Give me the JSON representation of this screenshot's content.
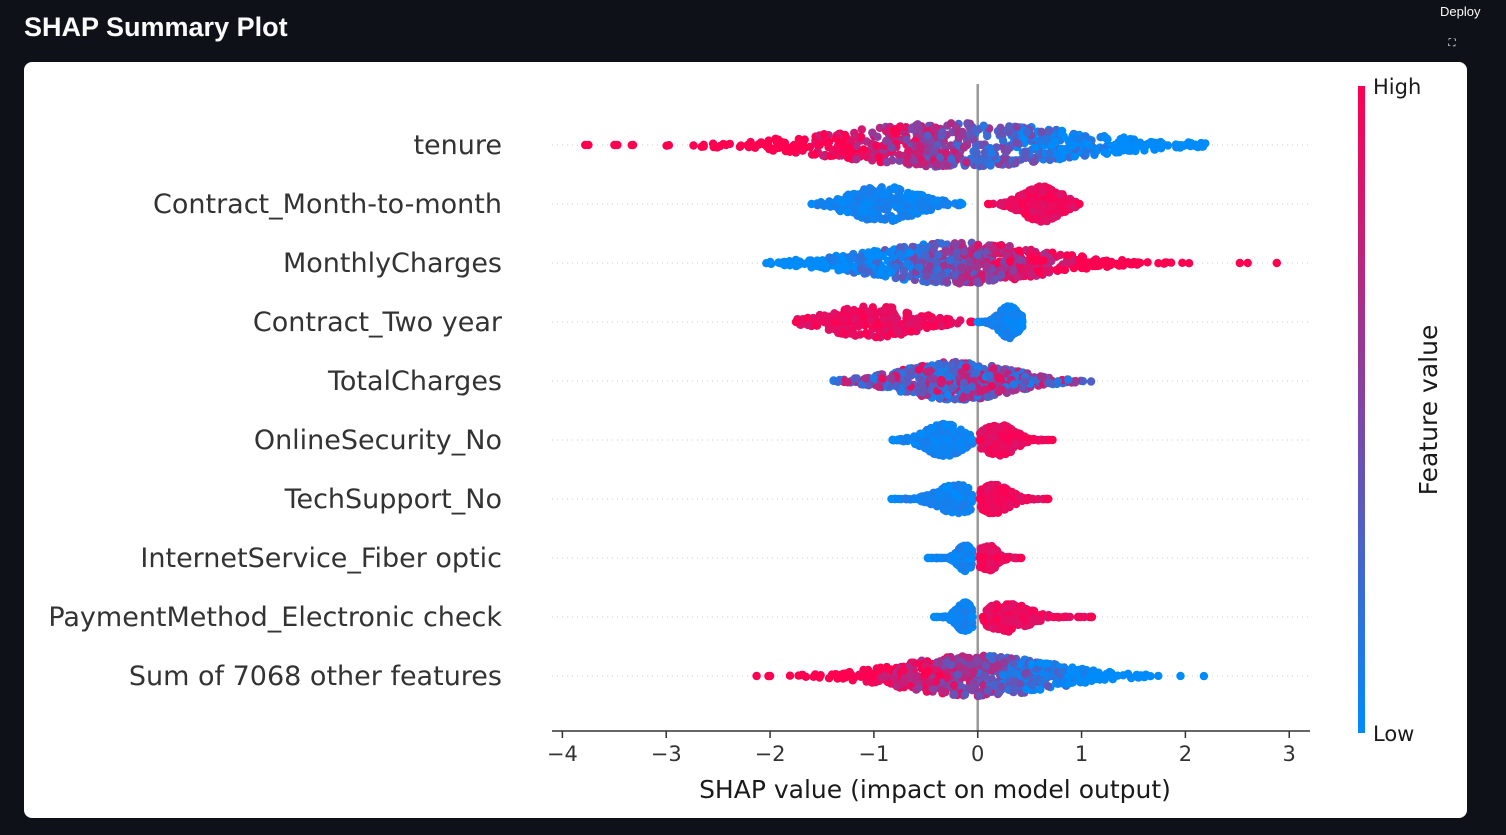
{
  "header": {
    "title": "SHAP Summary Plot",
    "deploy_label": "Deploy",
    "fullscreen_icon": "⛶"
  },
  "chart_data": {
    "type": "scatter",
    "subtype": "shap-beeswarm",
    "xlabel": "SHAP value (impact on model output)",
    "xlim": [
      -4.1,
      3.2
    ],
    "xticks": [
      -4,
      -3,
      -2,
      -1,
      0,
      1,
      2,
      3
    ],
    "xtick_labels": [
      "−4",
      "−3",
      "−2",
      "−1",
      "0",
      "1",
      "2",
      "3"
    ],
    "colorbar": {
      "title": "Feature value",
      "high_label": "High",
      "low_label": "Low",
      "high_color": "#ff0051",
      "low_color": "#008bfb"
    },
    "features": [
      {
        "name": "tenure",
        "mode": "mixed",
        "min": -3.8,
        "max": 2.2,
        "center": -0.2,
        "spread": 1.1,
        "height": 0.75,
        "n": 700,
        "outliers": [
          -3.78,
          -3.47,
          -3.32
        ],
        "color_trend": -1
      },
      {
        "name": "Contract_Month-to-month",
        "mode": "split",
        "neg": {
          "min": -1.6,
          "max": -0.15,
          "center": -0.9,
          "spread": 0.32,
          "high": false
        },
        "pos": {
          "min": 0.1,
          "max": 0.98,
          "center": 0.62,
          "spread": 0.18,
          "high": true
        },
        "height": 0.6,
        "n": 520
      },
      {
        "name": "MonthlyCharges",
        "mode": "mixed",
        "min": -2.05,
        "max": 2.9,
        "center": -0.2,
        "spread": 0.8,
        "height": 0.7,
        "n": 700,
        "outliers": [
          2.6,
          2.88
        ],
        "color_trend": 1
      },
      {
        "name": "Contract_Two year",
        "mode": "split",
        "neg": {
          "min": -1.75,
          "max": -0.05,
          "center": -1.0,
          "spread": 0.4,
          "high": true
        },
        "pos": {
          "min": 0.0,
          "max": 0.43,
          "center": 0.3,
          "spread": 0.09,
          "high": false
        },
        "height": 0.55,
        "n": 480
      },
      {
        "name": "TotalCharges",
        "mode": "mixed",
        "min": -1.4,
        "max": 1.55,
        "center": -0.2,
        "spread": 0.5,
        "height": 0.65,
        "n": 560,
        "color_trend": 0
      },
      {
        "name": "OnlineSecurity_No",
        "mode": "split",
        "neg": {
          "min": -0.82,
          "max": -0.05,
          "center": -0.32,
          "spread": 0.18,
          "high": false
        },
        "pos": {
          "min": 0.02,
          "max": 0.72,
          "center": 0.2,
          "spread": 0.15,
          "high": true
        },
        "height": 0.55,
        "n": 460
      },
      {
        "name": "TechSupport_No",
        "mode": "split",
        "neg": {
          "min": -0.83,
          "max": -0.05,
          "center": -0.2,
          "spread": 0.18,
          "high": false
        },
        "pos": {
          "min": 0.02,
          "max": 0.68,
          "center": 0.15,
          "spread": 0.15,
          "high": true
        },
        "height": 0.5,
        "n": 440
      },
      {
        "name": "InternetService_Fiber optic",
        "mode": "split",
        "neg": {
          "min": -0.48,
          "max": -0.05,
          "center": -0.12,
          "spread": 0.07,
          "high": false
        },
        "pos": {
          "min": 0.02,
          "max": 0.42,
          "center": 0.1,
          "spread": 0.09,
          "high": true
        },
        "height": 0.45,
        "n": 380
      },
      {
        "name": "PaymentMethod_Electronic check",
        "mode": "split",
        "neg": {
          "min": -0.42,
          "max": -0.05,
          "center": -0.12,
          "spread": 0.08,
          "high": false
        },
        "pos": {
          "min": 0.05,
          "max": 1.1,
          "center": 0.28,
          "spread": 0.2,
          "high": true,
          "outliers": [
            1.1
          ]
        },
        "height": 0.5,
        "n": 420
      },
      {
        "name": "Sum of 7068 other features",
        "mode": "mixed",
        "min": -2.15,
        "max": 2.22,
        "center": 0.0,
        "spread": 0.7,
        "height": 0.7,
        "n": 700,
        "outliers": [
          -2.13
        ],
        "color_trend": -1
      }
    ]
  }
}
